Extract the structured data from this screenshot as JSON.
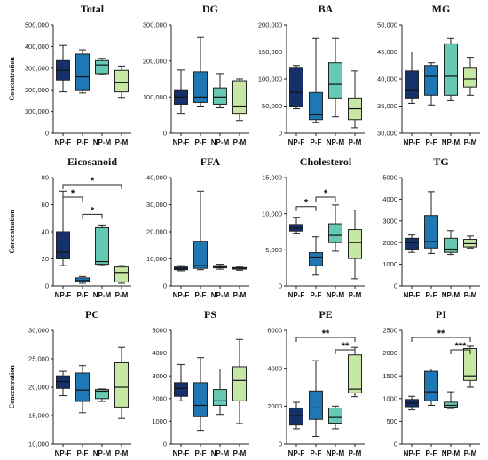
{
  "colors": [
    "#15306a",
    "#1f78b4",
    "#66c9b4",
    "#c6e8a4"
  ],
  "chart_data": [
    {
      "type": "box",
      "title": "Total",
      "ylabel": "Concentration",
      "ylim": [
        0,
        500000
      ],
      "yticks": [
        "0",
        "100,000",
        "200,000",
        "300,000",
        "400,000",
        "500,000"
      ],
      "categories": [
        "NP-F",
        "P-F",
        "NP-M",
        "P-M"
      ],
      "boxes": [
        {
          "min": 190000,
          "q1": 245000,
          "median": 290000,
          "q3": 335000,
          "max": 405000
        },
        {
          "min": 185000,
          "q1": 200000,
          "median": 260000,
          "q3": 365000,
          "max": 385000
        },
        {
          "min": 270000,
          "q1": 275000,
          "median": 315000,
          "q3": 335000,
          "max": 345000
        },
        {
          "min": 165000,
          "q1": 190000,
          "median": 235000,
          "q3": 290000,
          "max": 310000
        }
      ],
      "brackets": []
    },
    {
      "type": "box",
      "title": "DG",
      "ylabel": "",
      "ylim": [
        0,
        300000
      ],
      "yticks": [
        "0",
        "100,000",
        "200,000",
        "300,000"
      ],
      "categories": [
        "NP-F",
        "P-F",
        "NP-M",
        "P-M"
      ],
      "boxes": [
        {
          "min": 55000,
          "q1": 80000,
          "median": 100000,
          "q3": 120000,
          "max": 175000
        },
        {
          "min": 75000,
          "q1": 85000,
          "median": 100000,
          "q3": 170000,
          "max": 265000
        },
        {
          "min": 70000,
          "q1": 80000,
          "median": 100000,
          "q3": 125000,
          "max": 165000
        },
        {
          "min": 35000,
          "q1": 55000,
          "median": 75000,
          "q3": 145000,
          "max": 150000
        }
      ],
      "brackets": []
    },
    {
      "type": "box",
      "title": "BA",
      "ylabel": "",
      "ylim": [
        0,
        200000
      ],
      "yticks": [
        "0",
        "50,000",
        "100,000",
        "150,000",
        "200,000"
      ],
      "categories": [
        "NP-F",
        "P-F",
        "NP-M",
        "P-M"
      ],
      "boxes": [
        {
          "min": 45000,
          "q1": 50000,
          "median": 75000,
          "q3": 120000,
          "max": 125000
        },
        {
          "min": 20000,
          "q1": 25000,
          "median": 35000,
          "q3": 75000,
          "max": 175000
        },
        {
          "min": 30000,
          "q1": 65000,
          "median": 90000,
          "q3": 130000,
          "max": 175000
        },
        {
          "min": 10000,
          "q1": 25000,
          "median": 45000,
          "q3": 65000,
          "max": 115000
        }
      ],
      "brackets": []
    },
    {
      "type": "box",
      "title": "MG",
      "ylabel": "",
      "ylim": [
        30000,
        50000
      ],
      "yticks": [
        "30,000",
        "35,000",
        "40,000",
        "45,000",
        "50,000"
      ],
      "categories": [
        "NP-F",
        "P-F",
        "NP-M",
        "P-M"
      ],
      "boxes": [
        {
          "min": 35500,
          "q1": 36500,
          "median": 38000,
          "q3": 41500,
          "max": 45000
        },
        {
          "min": 35200,
          "q1": 37000,
          "median": 40500,
          "q3": 42500,
          "max": 43000
        },
        {
          "min": 36000,
          "q1": 37000,
          "median": 40500,
          "q3": 46500,
          "max": 47500
        },
        {
          "min": 37000,
          "q1": 38500,
          "median": 40000,
          "q3": 42000,
          "max": 44000
        }
      ],
      "brackets": []
    },
    {
      "type": "box",
      "title": "Eicosanoid",
      "ylabel": "Concentration",
      "ylim": [
        0,
        80
      ],
      "yticks": [
        "0",
        "20",
        "40",
        "60",
        "80"
      ],
      "categories": [
        "NP-F",
        "P-F",
        "NP-M",
        "P-M"
      ],
      "boxes": [
        {
          "min": 15,
          "q1": 20,
          "median": 25,
          "q3": 40,
          "max": 70
        },
        {
          "min": 2,
          "q1": 3,
          "median": 4,
          "q3": 6,
          "max": 7
        },
        {
          "min": 15,
          "q1": 16,
          "median": 18,
          "q3": 43,
          "max": 45
        },
        {
          "min": 2,
          "q1": 3,
          "median": 10,
          "q3": 14,
          "max": 15
        }
      ],
      "brackets": [
        {
          "from": 0,
          "to": 1,
          "label": "*"
        },
        {
          "from": 1,
          "to": 2,
          "label": "*"
        },
        {
          "from": 0,
          "to": 3,
          "label": "*"
        }
      ]
    },
    {
      "type": "box",
      "title": "FFA",
      "ylabel": "",
      "ylim": [
        0,
        40000
      ],
      "yticks": [
        "0",
        "10,000",
        "20,000",
        "30,000",
        "40,000"
      ],
      "categories": [
        "NP-F",
        "P-F",
        "NP-M",
        "P-M"
      ],
      "boxes": [
        {
          "min": 5600,
          "q1": 6000,
          "median": 6500,
          "q3": 7000,
          "max": 7500
        },
        {
          "min": 6000,
          "q1": 6500,
          "median": 7500,
          "q3": 16500,
          "max": 35000
        },
        {
          "min": 6200,
          "q1": 6700,
          "median": 7000,
          "q3": 7500,
          "max": 8000
        },
        {
          "min": 5800,
          "q1": 6200,
          "median": 6500,
          "q3": 6800,
          "max": 7200
        }
      ],
      "brackets": []
    },
    {
      "type": "box",
      "title": "Cholesterol",
      "ylabel": "",
      "ylim": [
        0,
        15000
      ],
      "yticks": [
        "0",
        "5,000",
        "10,000",
        "15,000"
      ],
      "categories": [
        "NP-F",
        "P-F",
        "NP-M",
        "P-M"
      ],
      "boxes": [
        {
          "min": 7300,
          "q1": 7600,
          "median": 8000,
          "q3": 8500,
          "max": 9500
        },
        {
          "min": 1500,
          "q1": 2800,
          "median": 4000,
          "q3": 4600,
          "max": 6800
        },
        {
          "min": 4800,
          "q1": 6000,
          "median": 7000,
          "q3": 8600,
          "max": 11200
        },
        {
          "min": 1000,
          "q1": 3800,
          "median": 6000,
          "q3": 7800,
          "max": 10500
        }
      ],
      "brackets": [
        {
          "from": 0,
          "to": 1,
          "label": "*"
        },
        {
          "from": 1,
          "to": 2,
          "label": "*"
        }
      ]
    },
    {
      "type": "box",
      "title": "TG",
      "ylabel": "",
      "ylim": [
        0,
        5000
      ],
      "yticks": [
        "0",
        "1000",
        "2000",
        "3000",
        "4000",
        "5000"
      ],
      "categories": [
        "NP-F",
        "P-F",
        "NP-M",
        "P-M"
      ],
      "boxes": [
        {
          "min": 1550,
          "q1": 1700,
          "median": 2000,
          "q3": 2200,
          "max": 2350
        },
        {
          "min": 1500,
          "q1": 1750,
          "median": 2050,
          "q3": 3250,
          "max": 4350
        },
        {
          "min": 1450,
          "q1": 1550,
          "median": 1700,
          "q3": 2200,
          "max": 2550
        },
        {
          "min": 1750,
          "q1": 1800,
          "median": 1950,
          "q3": 2150,
          "max": 2300
        }
      ],
      "brackets": []
    },
    {
      "type": "box",
      "title": "PC",
      "ylabel": "Concentration",
      "ylim": [
        10000,
        30000
      ],
      "yticks": [
        "10,000",
        "15,000",
        "20,000",
        "25,000",
        "30,000"
      ],
      "categories": [
        "NP-F",
        "P-F",
        "NP-M",
        "P-M"
      ],
      "boxes": [
        {
          "min": 18500,
          "q1": 19800,
          "median": 21000,
          "q3": 22000,
          "max": 22800
        },
        {
          "min": 15500,
          "q1": 17500,
          "median": 19500,
          "q3": 22500,
          "max": 23800
        },
        {
          "min": 17500,
          "q1": 18000,
          "median": 19300,
          "q3": 19600,
          "max": 19700
        },
        {
          "min": 14500,
          "q1": 16500,
          "median": 20000,
          "q3": 24300,
          "max": 27000
        }
      ],
      "brackets": []
    },
    {
      "type": "box",
      "title": "PS",
      "ylabel": "",
      "ylim": [
        0,
        5000
      ],
      "yticks": [
        "0",
        "1000",
        "2000",
        "3000",
        "4000",
        "5000"
      ],
      "categories": [
        "NP-F",
        "P-F",
        "NP-M",
        "P-M"
      ],
      "boxes": [
        {
          "min": 1900,
          "q1": 2100,
          "median": 2450,
          "q3": 2700,
          "max": 3500
        },
        {
          "min": 600,
          "q1": 1200,
          "median": 1700,
          "q3": 2700,
          "max": 3800
        },
        {
          "min": 1300,
          "q1": 1700,
          "median": 1900,
          "q3": 2400,
          "max": 3300
        },
        {
          "min": 900,
          "q1": 1900,
          "median": 2800,
          "q3": 3400,
          "max": 4600
        }
      ],
      "brackets": []
    },
    {
      "type": "box",
      "title": "PE",
      "ylabel": "",
      "ylim": [
        0,
        6000
      ],
      "yticks": [
        "0",
        "2000",
        "4000",
        "6000"
      ],
      "categories": [
        "NP-F",
        "P-F",
        "NP-M",
        "P-M"
      ],
      "boxes": [
        {
          "min": 800,
          "q1": 1000,
          "median": 1500,
          "q3": 1900,
          "max": 2200
        },
        {
          "min": 400,
          "q1": 1300,
          "median": 1900,
          "q3": 2800,
          "max": 4400
        },
        {
          "min": 800,
          "q1": 1100,
          "median": 1400,
          "q3": 1900,
          "max": 2000
        },
        {
          "min": 2500,
          "q1": 2700,
          "median": 2900,
          "q3": 4700,
          "max": 5100
        }
      ],
      "brackets": [
        {
          "from": 2,
          "to": 3,
          "label": "**"
        },
        {
          "from": 0,
          "to": 3,
          "label": "**"
        }
      ]
    },
    {
      "type": "box",
      "title": "PI",
      "ylabel": "",
      "ylim": [
        0,
        2500
      ],
      "yticks": [
        "0",
        "500",
        "1000",
        "1500",
        "2000",
        "2500"
      ],
      "categories": [
        "NP-F",
        "P-F",
        "NP-M",
        "P-M"
      ],
      "boxes": [
        {
          "min": 750,
          "q1": 820,
          "median": 900,
          "q3": 980,
          "max": 1050
        },
        {
          "min": 850,
          "q1": 950,
          "median": 1150,
          "q3": 1600,
          "max": 1650
        },
        {
          "min": 780,
          "q1": 810,
          "median": 850,
          "q3": 920,
          "max": 1150
        },
        {
          "min": 1250,
          "q1": 1400,
          "median": 1500,
          "q3": 2100,
          "max": 2150
        }
      ],
      "brackets": [
        {
          "from": 2,
          "to": 3,
          "label": "***"
        },
        {
          "from": 0,
          "to": 3,
          "label": "**"
        }
      ]
    }
  ]
}
